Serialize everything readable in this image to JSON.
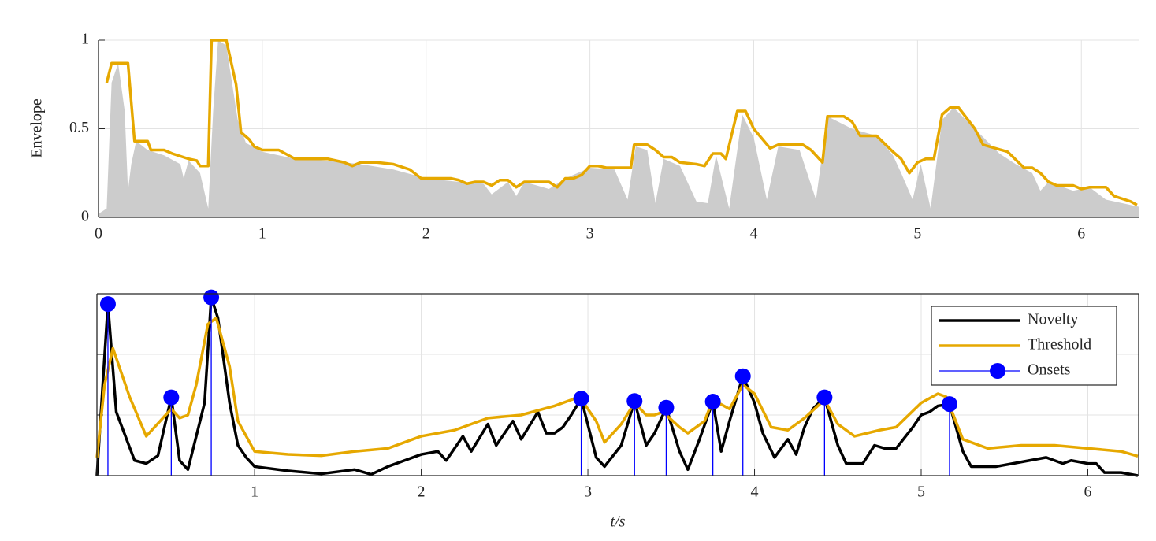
{
  "chart_data": [
    {
      "type": "line",
      "ylabel": "Envelope",
      "xlim": [
        0,
        6.35
      ],
      "ylim": [
        0,
        1
      ],
      "xticks": [
        0,
        1,
        2,
        3,
        4,
        5,
        6
      ],
      "yticks": [
        0,
        0.5,
        1
      ],
      "grid": true,
      "box": false,
      "series": [
        {
          "style": "area",
          "color": "#cccccc",
          "x": [
            0,
            0.05,
            0.08,
            0.12,
            0.16,
            0.18,
            0.2,
            0.23,
            0.3,
            0.4,
            0.5,
            0.52,
            0.55,
            0.62,
            0.67,
            0.7,
            0.73,
            0.78,
            0.85,
            0.9,
            1.0,
            1.2,
            1.4,
            1.6,
            1.8,
            2.0,
            2.2,
            2.35,
            2.4,
            2.5,
            2.55,
            2.6,
            2.75,
            2.85,
            3.0,
            3.15,
            3.23,
            3.28,
            3.35,
            3.4,
            3.45,
            3.55,
            3.65,
            3.72,
            3.77,
            3.85,
            3.93,
            4.0,
            4.08,
            4.15,
            4.28,
            4.38,
            4.45,
            4.6,
            4.75,
            4.85,
            4.9,
            4.97,
            5.02,
            5.08,
            5.15,
            5.22,
            5.35,
            5.5,
            5.6,
            5.7,
            5.75,
            5.8,
            5.95,
            6.05,
            6.15,
            6.25,
            6.35
          ],
          "values": [
            0.02,
            0.05,
            0.76,
            0.87,
            0.6,
            0.15,
            0.3,
            0.43,
            0.38,
            0.35,
            0.3,
            0.22,
            0.32,
            0.25,
            0.05,
            0.6,
            1.0,
            0.97,
            0.55,
            0.42,
            0.37,
            0.33,
            0.32,
            0.3,
            0.27,
            0.22,
            0.2,
            0.19,
            0.13,
            0.2,
            0.12,
            0.2,
            0.16,
            0.22,
            0.28,
            0.27,
            0.1,
            0.4,
            0.38,
            0.08,
            0.33,
            0.29,
            0.09,
            0.08,
            0.35,
            0.05,
            0.58,
            0.45,
            0.1,
            0.4,
            0.38,
            0.1,
            0.57,
            0.5,
            0.46,
            0.35,
            0.25,
            0.1,
            0.3,
            0.05,
            0.55,
            0.62,
            0.5,
            0.36,
            0.3,
            0.25,
            0.15,
            0.2,
            0.15,
            0.17,
            0.1,
            0.08,
            0.06
          ]
        },
        {
          "style": "line",
          "color": "#e6a800",
          "x": [
            0.05,
            0.08,
            0.18,
            0.22,
            0.3,
            0.32,
            0.4,
            0.45,
            0.55,
            0.6,
            0.62,
            0.67,
            0.69,
            0.78,
            0.84,
            0.87,
            0.92,
            0.95,
            1.0,
            1.1,
            1.2,
            1.4,
            1.5,
            1.55,
            1.6,
            1.7,
            1.8,
            1.9,
            1.97,
            2.15,
            2.2,
            2.25,
            2.3,
            2.35,
            2.4,
            2.45,
            2.5,
            2.55,
            2.6,
            2.75,
            2.8,
            2.85,
            2.9,
            2.95,
            3.0,
            3.05,
            3.1,
            3.25,
            3.27,
            3.35,
            3.4,
            3.45,
            3.5,
            3.55,
            3.65,
            3.7,
            3.75,
            3.8,
            3.83,
            3.9,
            3.95,
            4.0,
            4.1,
            4.15,
            4.3,
            4.35,
            4.42,
            4.45,
            4.55,
            4.6,
            4.65,
            4.75,
            4.85,
            4.9,
            4.95,
            5.0,
            5.05,
            5.1,
            5.15,
            5.2,
            5.25,
            5.35,
            5.4,
            5.55,
            5.65,
            5.7,
            5.75,
            5.8,
            5.85,
            5.95,
            6.0,
            6.05,
            6.15,
            6.2,
            6.3,
            6.34
          ],
          "values": [
            0.76,
            0.87,
            0.87,
            0.43,
            0.43,
            0.38,
            0.38,
            0.36,
            0.33,
            0.32,
            0.29,
            0.29,
            1.0,
            1.0,
            0.75,
            0.48,
            0.44,
            0.4,
            0.38,
            0.38,
            0.33,
            0.33,
            0.31,
            0.29,
            0.31,
            0.31,
            0.3,
            0.27,
            0.22,
            0.22,
            0.21,
            0.19,
            0.2,
            0.2,
            0.18,
            0.21,
            0.21,
            0.17,
            0.2,
            0.2,
            0.17,
            0.22,
            0.22,
            0.24,
            0.29,
            0.29,
            0.28,
            0.28,
            0.41,
            0.41,
            0.38,
            0.34,
            0.34,
            0.31,
            0.3,
            0.29,
            0.36,
            0.36,
            0.33,
            0.6,
            0.6,
            0.5,
            0.39,
            0.41,
            0.41,
            0.38,
            0.31,
            0.57,
            0.57,
            0.54,
            0.46,
            0.46,
            0.37,
            0.33,
            0.25,
            0.31,
            0.33,
            0.33,
            0.58,
            0.62,
            0.62,
            0.5,
            0.41,
            0.37,
            0.28,
            0.28,
            0.25,
            0.2,
            0.18,
            0.18,
            0.16,
            0.17,
            0.17,
            0.12,
            0.09,
            0.07
          ]
        }
      ]
    },
    {
      "type": "line",
      "xlabel": "t/s",
      "xlim": [
        0.054,
        6.305
      ],
      "ylim": [
        0,
        3
      ],
      "xticks": [
        1,
        2,
        3,
        4,
        5,
        6
      ],
      "yticks": [
        1,
        2
      ],
      "grid": true,
      "box": true,
      "legend": "upper right",
      "series": [
        {
          "name": "Novelty",
          "style": "line",
          "color": "#000000",
          "x": [
            0.054,
            0.12,
            0.17,
            0.28,
            0.35,
            0.42,
            0.5,
            0.55,
            0.6,
            0.7,
            0.74,
            0.78,
            0.85,
            0.9,
            0.95,
            1.0,
            1.2,
            1.4,
            1.6,
            1.7,
            1.8,
            1.9,
            2.0,
            2.1,
            2.15,
            2.25,
            2.3,
            2.4,
            2.45,
            2.55,
            2.6,
            2.7,
            2.75,
            2.8,
            2.85,
            2.9,
            2.96,
            3.05,
            3.1,
            3.2,
            3.28,
            3.35,
            3.4,
            3.47,
            3.55,
            3.6,
            3.67,
            3.75,
            3.8,
            3.85,
            3.93,
            4.0,
            4.05,
            4.12,
            4.2,
            4.25,
            4.3,
            4.35,
            4.42,
            4.5,
            4.55,
            4.65,
            4.72,
            4.78,
            4.85,
            4.95,
            5.0,
            5.05,
            5.1,
            5.17,
            5.25,
            5.3,
            5.45,
            5.55,
            5.65,
            5.75,
            5.85,
            5.9,
            6.0,
            6.05,
            6.1,
            6.2,
            6.3
          ],
          "values": [
            0,
            2.83,
            1.05,
            0.25,
            0.2,
            0.33,
            1.29,
            0.25,
            0.1,
            1.2,
            2.94,
            2.6,
            1.2,
            0.5,
            0.3,
            0.15,
            0.08,
            0.03,
            0.1,
            0.02,
            0.15,
            0.25,
            0.35,
            0.4,
            0.25,
            0.65,
            0.4,
            0.85,
            0.5,
            0.9,
            0.6,
            1.05,
            0.7,
            0.7,
            0.8,
            1.0,
            1.27,
            0.3,
            0.15,
            0.5,
            1.23,
            0.5,
            0.7,
            1.12,
            0.4,
            0.1,
            0.6,
            1.22,
            0.4,
            0.9,
            1.64,
            1.2,
            0.7,
            0.3,
            0.6,
            0.35,
            0.8,
            1.1,
            1.29,
            0.5,
            0.2,
            0.2,
            0.5,
            0.45,
            0.45,
            0.8,
            1.0,
            1.05,
            1.15,
            1.18,
            0.4,
            0.15,
            0.15,
            0.2,
            0.25,
            0.3,
            0.2,
            0.25,
            0.2,
            0.2,
            0.05,
            0.05,
            0
          ]
        },
        {
          "name": "Threshold",
          "style": "line",
          "color": "#e6a800",
          "x": [
            0.054,
            0.1,
            0.15,
            0.25,
            0.35,
            0.45,
            0.5,
            0.55,
            0.6,
            0.65,
            0.72,
            0.77,
            0.85,
            0.9,
            1.0,
            1.2,
            1.4,
            1.6,
            1.8,
            2.0,
            2.2,
            2.4,
            2.6,
            2.8,
            2.9,
            2.95,
            3.05,
            3.1,
            3.2,
            3.28,
            3.35,
            3.4,
            3.45,
            3.55,
            3.6,
            3.7,
            3.75,
            3.85,
            3.93,
            4.0,
            4.1,
            4.2,
            4.3,
            4.42,
            4.5,
            4.6,
            4.75,
            4.85,
            5.0,
            5.1,
            5.15,
            5.25,
            5.4,
            5.6,
            5.8,
            6.0,
            6.2,
            6.3
          ],
          "values": [
            0.3,
            1.5,
            2.1,
            1.3,
            0.65,
            0.95,
            1.1,
            0.95,
            1.0,
            1.5,
            2.5,
            2.6,
            1.8,
            0.9,
            0.4,
            0.35,
            0.33,
            0.4,
            0.45,
            0.65,
            0.75,
            0.95,
            1.0,
            1.15,
            1.25,
            1.3,
            0.9,
            0.55,
            0.85,
            1.2,
            1.0,
            1.0,
            1.05,
            0.8,
            0.7,
            0.9,
            1.25,
            1.1,
            1.5,
            1.35,
            0.8,
            0.75,
            0.95,
            1.25,
            0.85,
            0.65,
            0.75,
            0.8,
            1.2,
            1.35,
            1.3,
            0.6,
            0.45,
            0.5,
            0.5,
            0.45,
            0.4,
            0.32
          ]
        },
        {
          "name": "Onsets",
          "style": "stem",
          "color": "#0000ff",
          "x": [
            0.12,
            0.5,
            0.74,
            2.96,
            3.28,
            3.47,
            3.75,
            3.93,
            4.42,
            5.17
          ],
          "values": [
            2.83,
            1.29,
            2.94,
            1.27,
            1.23,
            1.12,
            1.22,
            1.64,
            1.29,
            1.18
          ]
        }
      ]
    }
  ]
}
